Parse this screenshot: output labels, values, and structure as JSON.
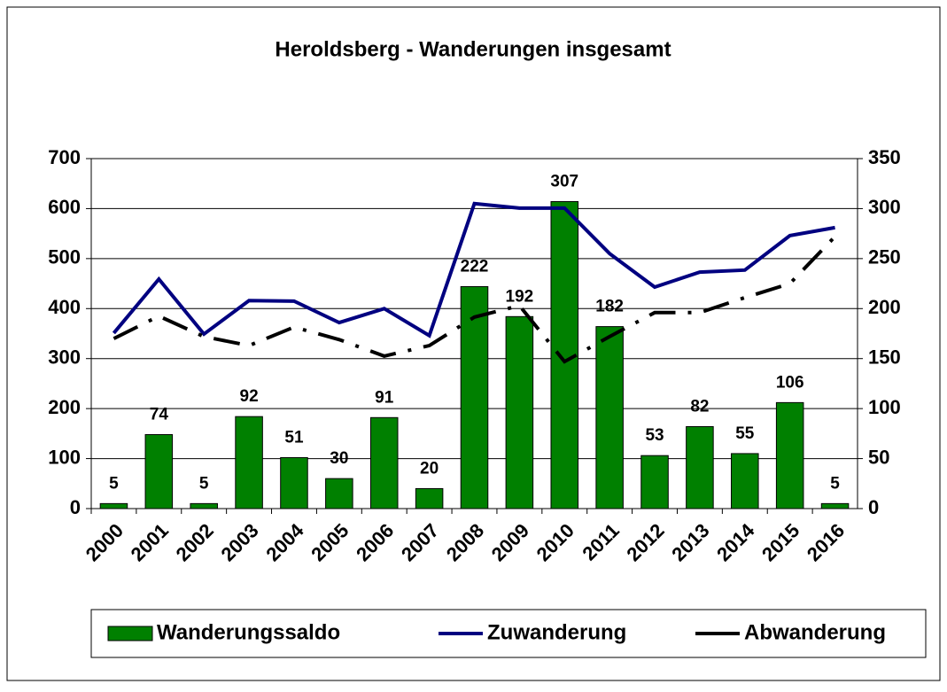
{
  "chart_data": {
    "type": "bar",
    "title": "Heroldsberg - Wanderungen insgesamt",
    "categories": [
      "2000",
      "2001",
      "2002",
      "2003",
      "2004",
      "2005",
      "2006",
      "2007",
      "2008",
      "2009",
      "2010",
      "2011",
      "2012",
      "2013",
      "2014",
      "2015",
      "2016"
    ],
    "series": [
      {
        "name": "Wanderungssaldo",
        "type": "bar",
        "axis": "y2",
        "color": "#008000",
        "values": [
          5,
          74,
          5,
          92,
          51,
          30,
          91,
          20,
          222,
          192,
          307,
          182,
          53,
          82,
          55,
          106,
          5
        ]
      },
      {
        "name": "Zuwanderung",
        "type": "line",
        "color": "#000080",
        "values": [
          351,
          459,
          349,
          416,
          415,
          372,
          400,
          346,
          610,
          601,
          601,
          510,
          443,
          473,
          477,
          546,
          562
        ]
      },
      {
        "name": "Abwanderung",
        "type": "line",
        "dashed": true,
        "color": "#000000",
        "values": [
          340,
          385,
          344,
          326,
          363,
          338,
          305,
          326,
          383,
          406,
          294,
          344,
          392,
          392,
          422,
          450,
          544
        ]
      }
    ],
    "ylim": [
      0,
      700
    ],
    "yticks": [
      0,
      100,
      200,
      300,
      400,
      500,
      600,
      700
    ],
    "y2lim": [
      0,
      350
    ],
    "y2ticks": [
      0,
      50,
      100,
      150,
      200,
      250,
      300,
      350
    ],
    "grid": true
  }
}
